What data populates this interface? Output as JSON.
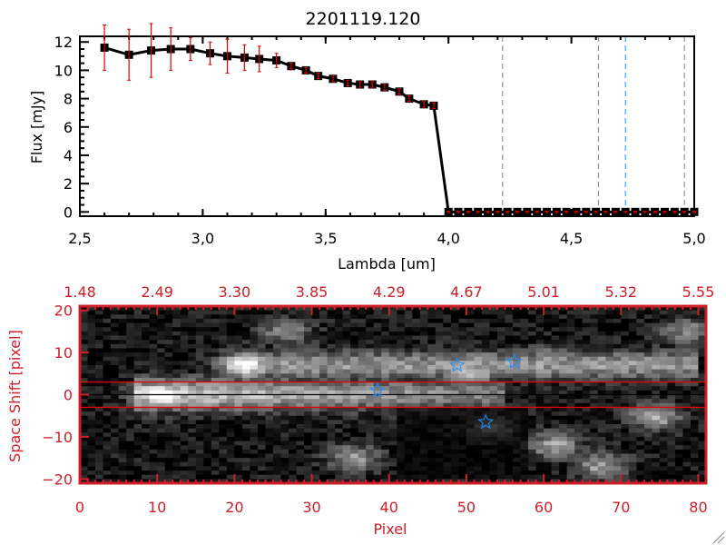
{
  "title": "2201119.120",
  "chart_data": [
    {
      "type": "line",
      "xlabel": "Lambda [um]",
      "ylabel": "Flux [mJy]",
      "xlim": [
        2.5,
        5.0
      ],
      "ylim": [
        -0.3,
        12.4
      ],
      "xticks": [
        "2.5",
        "3.0",
        "3.5",
        "4.0",
        "4.5",
        "5.0"
      ],
      "yticks": [
        "0",
        "2",
        "4",
        "6",
        "8",
        "10",
        "12"
      ],
      "series": [
        {
          "x": [
            2.6,
            2.7,
            2.79,
            2.87,
            2.95,
            3.03,
            3.1,
            3.17,
            3.23,
            3.3,
            3.36,
            3.42,
            3.47,
            3.53,
            3.59,
            3.64,
            3.69,
            3.74,
            3.8,
            3.84,
            3.9,
            3.94,
            4.0,
            4.04,
            4.08,
            4.12,
            4.16,
            4.2,
            4.24,
            4.28,
            4.32,
            4.36,
            4.4,
            4.44,
            4.48,
            4.52,
            4.56,
            4.6,
            4.64,
            4.68,
            4.72,
            4.76,
            4.8,
            4.84,
            4.88,
            4.92,
            4.96,
            5.0
          ],
          "y": [
            11.6,
            11.1,
            11.4,
            11.5,
            11.5,
            11.2,
            11.0,
            10.9,
            10.8,
            10.7,
            10.3,
            10.0,
            9.6,
            9.4,
            9.1,
            9.0,
            9.0,
            8.8,
            8.5,
            8.0,
            7.6,
            7.5,
            0,
            0,
            0,
            0,
            0,
            0,
            0,
            0,
            0,
            0,
            0,
            0,
            0,
            0,
            0,
            0,
            0,
            0,
            0,
            0,
            0,
            0,
            0,
            0,
            0,
            0
          ],
          "err": [
            1.6,
            1.8,
            1.9,
            1.5,
            0.8,
            0.8,
            1.2,
            0.9,
            0.9,
            0.5,
            0.2,
            0.2,
            0.2,
            0.2,
            0.2,
            0.2,
            0.2,
            0.2,
            0.2,
            0.2,
            0.2,
            0.2,
            0.05,
            0.05,
            0.05,
            0.05,
            0.05,
            0.05,
            0.05,
            0.05,
            0.05,
            0.05,
            0.05,
            0.05,
            0.05,
            0.05,
            0.05,
            0.05,
            0.05,
            0.05,
            0.05,
            0.05,
            0.05,
            0.05,
            0.05,
            0.05,
            0.05,
            0.05
          ],
          "color": "#000000",
          "error_color": "#e00000"
        }
      ],
      "vlines": [
        {
          "x": 4.22,
          "color": "#808080"
        },
        {
          "x": 4.61,
          "color": "#808080"
        },
        {
          "x": 4.72,
          "color": "#1e90ff"
        },
        {
          "x": 4.96,
          "color": "#808080"
        }
      ]
    },
    {
      "type": "heatmap",
      "xlabel": "Pixel",
      "ylabel": "Space Shift [pixel]",
      "xlim": [
        0,
        81
      ],
      "ylim": [
        -21,
        21
      ],
      "xticks": [
        "0",
        "10",
        "20",
        "30",
        "40",
        "50",
        "60",
        "70",
        "80"
      ],
      "yticks": [
        "20",
        "10",
        "0",
        "-10",
        "-20"
      ],
      "top_xticks": [
        "1.48",
        "2.49",
        "3.30",
        "3.85",
        "4.29",
        "4.67",
        "5.01",
        "5.32",
        "5.55"
      ],
      "colormap": "grayscale",
      "features": [
        {
          "pixel": 10,
          "shift": 0,
          "level": 1.0
        },
        {
          "pixel": 21,
          "shift": 7,
          "level": 0.9
        },
        {
          "pixel": 26,
          "shift": 15,
          "level": 0.45
        },
        {
          "pixel": 50,
          "shift": 5,
          "level": 0.7
        },
        {
          "pixel": 60,
          "shift": 8,
          "level": 0.55
        },
        {
          "pixel": 35,
          "shift": -15,
          "level": 0.5
        },
        {
          "pixel": 53,
          "shift": -8,
          "level": 0.4
        },
        {
          "pixel": 61,
          "shift": -12,
          "level": 0.55
        },
        {
          "pixel": 67,
          "shift": -17,
          "level": 0.55
        },
        {
          "pixel": 74,
          "shift": -5,
          "level": 0.6
        },
        {
          "pixel": 78,
          "shift": 15,
          "level": 0.45
        }
      ],
      "stars": [
        {
          "pixel": 38.5,
          "shift": 1.0
        },
        {
          "pixel": 48.8,
          "shift": 7.0
        },
        {
          "pixel": 52.5,
          "shift": -6.5
        },
        {
          "pixel": 56.2,
          "shift": 7.8
        }
      ],
      "star_color": "#1e90ff",
      "hlines": [
        {
          "shift": 3,
          "color": "#e00000"
        },
        {
          "shift": -3,
          "color": "#e00000"
        },
        {
          "shift": 0,
          "color": "#000000"
        }
      ],
      "axis_color": "#d01e28"
    }
  ]
}
